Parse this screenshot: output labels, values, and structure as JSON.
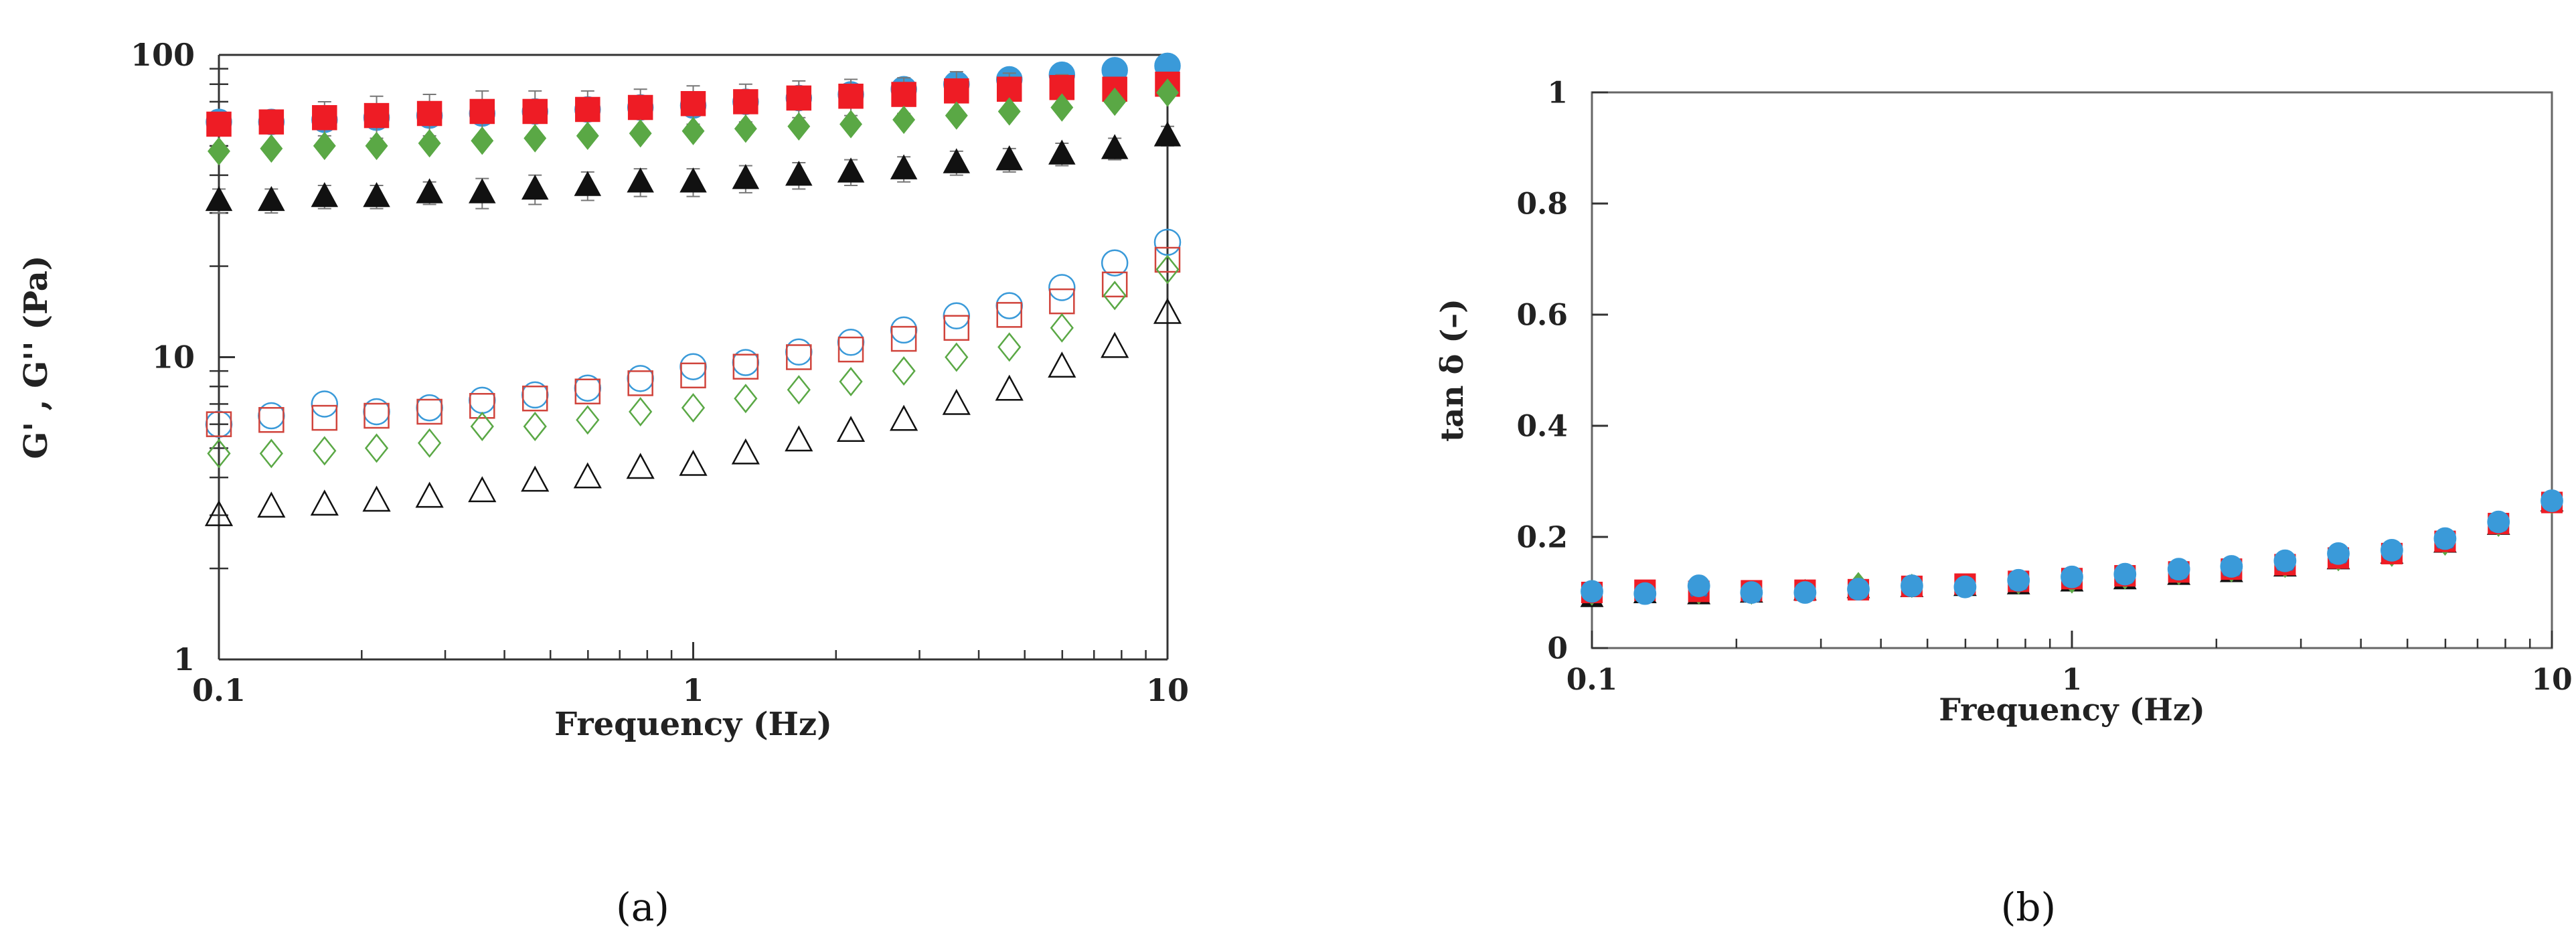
{
  "chart_data": [
    {
      "type": "scatter",
      "panel_label": "(a)",
      "xlabel": "Frequency (Hz)",
      "ylabel": "G' , G'' (Pa)",
      "xscale": "log",
      "yscale": "log",
      "xlim": [
        0.1,
        10
      ],
      "ylim": [
        1,
        100
      ],
      "xticks": [
        0.1,
        1,
        10
      ],
      "xtick_labels": [
        "0.1",
        "1",
        "10"
      ],
      "yticks": [
        1,
        10,
        100
      ],
      "ytick_labels": [
        "1",
        "10",
        "100"
      ],
      "grid": false,
      "x": [
        0.1,
        0.129,
        0.167,
        0.215,
        0.278,
        0.359,
        0.464,
        0.599,
        0.774,
        1.0,
        1.29,
        1.67,
        2.15,
        2.78,
        3.59,
        4.64,
        5.99,
        7.74,
        10.0
      ],
      "series": [
        {
          "marker": "circle",
          "filled": true,
          "color": "#3a9ad9",
          "values": [
            60,
            60,
            61,
            62,
            63,
            64,
            65,
            66,
            67,
            68,
            70,
            72,
            74,
            77,
            80,
            83,
            86,
            89,
            92
          ]
        },
        {
          "marker": "square",
          "filled": true,
          "color": "#ee1c25",
          "values": [
            59,
            60,
            62,
            63,
            64,
            65,
            65,
            66,
            67,
            69,
            70,
            72,
            73,
            74,
            76,
            77,
            78,
            77,
            80
          ],
          "error": [
            3,
            4,
            8,
            10,
            10,
            11,
            11,
            10,
            10,
            10,
            10,
            10,
            10,
            10,
            12,
            10,
            8,
            6,
            5
          ]
        },
        {
          "marker": "diamond",
          "filled": true,
          "color": "#5aa845",
          "values": [
            48,
            49,
            50,
            50,
            51,
            52,
            53,
            54,
            55,
            56,
            57,
            58,
            59,
            61,
            63,
            65,
            67,
            70,
            75
          ]
        },
        {
          "marker": "triangle",
          "filled": true,
          "color": "#111111",
          "values": [
            33,
            33,
            34,
            34,
            35,
            35,
            36,
            37,
            38,
            38,
            39,
            40,
            41,
            42,
            44,
            45,
            47,
            49,
            54
          ],
          "error": [
            3,
            3,
            3,
            3,
            3,
            4,
            4,
            4,
            4,
            4,
            4,
            4,
            4,
            4,
            4,
            4,
            4,
            4,
            4
          ]
        },
        {
          "marker": "circle",
          "filled": false,
          "color": "#3a9ad9",
          "values": [
            6.0,
            6.4,
            7.0,
            6.6,
            6.8,
            7.2,
            7.5,
            7.9,
            8.5,
            9.3,
            9.6,
            10.4,
            11.2,
            12.3,
            13.7,
            14.8,
            17.0,
            20.5,
            24.0
          ]
        },
        {
          "marker": "square",
          "filled": false,
          "color": "#d0443c",
          "values": [
            6.0,
            6.2,
            6.3,
            6.4,
            6.6,
            6.9,
            7.3,
            7.7,
            8.2,
            8.7,
            9.3,
            10.0,
            10.6,
            11.5,
            12.5,
            13.8,
            15.3,
            17.4,
            21.0
          ]
        },
        {
          "marker": "diamond",
          "filled": false,
          "color": "#5aa845",
          "values": [
            4.8,
            4.8,
            4.9,
            5.0,
            5.2,
            5.9,
            5.9,
            6.2,
            6.6,
            6.8,
            7.3,
            7.8,
            8.3,
            9.0,
            10.0,
            10.8,
            12.5,
            16.0,
            19.5
          ]
        },
        {
          "marker": "triangle",
          "filled": false,
          "color": "#111111",
          "values": [
            3.0,
            3.2,
            3.25,
            3.35,
            3.45,
            3.6,
            3.9,
            4.0,
            4.3,
            4.4,
            4.8,
            5.3,
            5.7,
            6.2,
            7.0,
            7.8,
            9.3,
            10.8,
            14.0
          ]
        }
      ]
    },
    {
      "type": "scatter",
      "panel_label": "(b)",
      "xlabel": "Frequency (Hz)",
      "ylabel": "tan δ (–)",
      "xscale": "log",
      "yscale": "linear",
      "xlim": [
        0.1,
        10
      ],
      "ylim": [
        0,
        1
      ],
      "xticks": [
        0.1,
        1,
        10
      ],
      "xtick_labels": [
        "0.1",
        "1",
        "10"
      ],
      "yticks": [
        0,
        0.2,
        0.4,
        0.6,
        0.8,
        1
      ],
      "ytick_labels": [
        "0",
        "0.2",
        "0.4",
        "0.6",
        "0.8",
        "1"
      ],
      "grid": false,
      "x": [
        0.1,
        0.129,
        0.167,
        0.215,
        0.278,
        0.359,
        0.464,
        0.599,
        0.774,
        1.0,
        1.29,
        1.67,
        2.15,
        2.78,
        3.59,
        4.64,
        5.99,
        7.74,
        10.0
      ],
      "series": [
        {
          "marker": "triangle",
          "filled": true,
          "color": "#111111",
          "values": [
            0.09,
            0.097,
            0.095,
            0.098,
            0.102,
            0.106,
            0.108,
            0.11,
            0.113,
            0.118,
            0.122,
            0.13,
            0.135,
            0.145,
            0.158,
            0.168,
            0.188,
            0.22,
            0.262
          ]
        },
        {
          "marker": "diamond",
          "filled": true,
          "color": "#5aa845",
          "values": [
            0.098,
            0.1,
            0.1,
            0.1,
            0.102,
            0.115,
            0.112,
            0.112,
            0.118,
            0.12,
            0.127,
            0.135,
            0.14,
            0.148,
            0.16,
            0.168,
            0.188,
            0.222,
            0.262
          ]
        },
        {
          "marker": "square",
          "filled": true,
          "color": "#ee1c25",
          "values": [
            0.1,
            0.104,
            0.102,
            0.103,
            0.104,
            0.105,
            0.111,
            0.115,
            0.12,
            0.125,
            0.13,
            0.137,
            0.142,
            0.15,
            0.162,
            0.17,
            0.192,
            0.224,
            0.262
          ]
        },
        {
          "marker": "x",
          "filled": false,
          "color": "#2f6fb5",
          "values": [
            0.102,
            0.098,
            0.108,
            0.098,
            0.1,
            0.105,
            0.112,
            0.11,
            0.12,
            0.127,
            0.132,
            0.14,
            0.145,
            0.155,
            0.168,
            0.175,
            0.195,
            0.226,
            0.265
          ]
        },
        {
          "marker": "circle",
          "filled": true,
          "color": "#3a9ad9",
          "values": [
            0.102,
            0.098,
            0.112,
            0.1,
            0.1,
            0.106,
            0.112,
            0.11,
            0.122,
            0.128,
            0.133,
            0.142,
            0.147,
            0.157,
            0.17,
            0.176,
            0.197,
            0.227,
            0.265
          ]
        }
      ]
    }
  ]
}
